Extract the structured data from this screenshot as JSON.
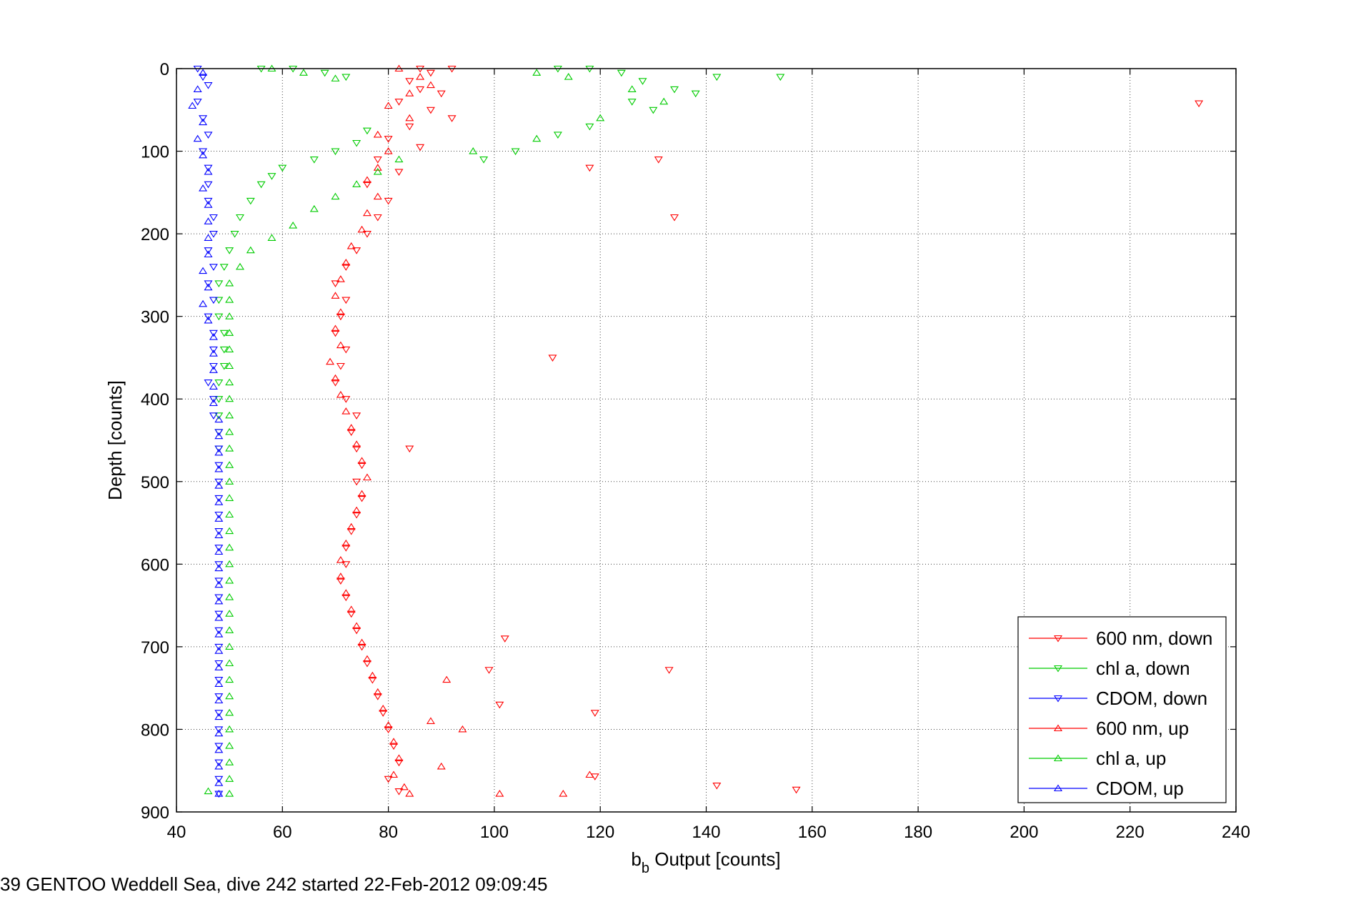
{
  "chart_data": {
    "type": "scatter",
    "xlabel": {
      "base": "b",
      "sub": "b",
      "rest": " Output [counts]"
    },
    "ylabel": "Depth [counts]",
    "xlim": [
      40,
      240
    ],
    "ylim": [
      0,
      900
    ],
    "y_reversed": true,
    "xticks": [
      40,
      60,
      80,
      100,
      120,
      140,
      160,
      180,
      200,
      220,
      240
    ],
    "yticks": [
      0,
      100,
      200,
      300,
      400,
      500,
      600,
      700,
      800,
      900
    ],
    "grid": true,
    "legend_position": "bottom-right",
    "series": [
      {
        "name": "600 nm, down",
        "color": "#ff0000",
        "marker": "triangle-down",
        "points": [
          [
            86,
            0
          ],
          [
            88,
            5
          ],
          [
            92,
            0
          ],
          [
            84,
            15
          ],
          [
            86,
            25
          ],
          [
            90,
            30
          ],
          [
            82,
            40
          ],
          [
            88,
            50
          ],
          [
            92,
            60
          ],
          [
            84,
            70
          ],
          [
            80,
            85
          ],
          [
            86,
            95
          ],
          [
            78,
            110
          ],
          [
            82,
            125
          ],
          [
            76,
            140
          ],
          [
            80,
            160
          ],
          [
            78,
            180
          ],
          [
            76,
            200
          ],
          [
            74,
            220
          ],
          [
            72,
            240
          ],
          [
            70,
            260
          ],
          [
            72,
            280
          ],
          [
            71,
            300
          ],
          [
            70,
            320
          ],
          [
            72,
            340
          ],
          [
            71,
            360
          ],
          [
            70,
            380
          ],
          [
            72,
            400
          ],
          [
            74,
            420
          ],
          [
            73,
            440
          ],
          [
            74,
            460
          ],
          [
            75,
            480
          ],
          [
            74,
            500
          ],
          [
            75,
            520
          ],
          [
            74,
            540
          ],
          [
            73,
            560
          ],
          [
            72,
            580
          ],
          [
            72,
            600
          ],
          [
            71,
            620
          ],
          [
            72,
            640
          ],
          [
            73,
            660
          ],
          [
            74,
            680
          ],
          [
            75,
            700
          ],
          [
            76,
            720
          ],
          [
            77,
            740
          ],
          [
            78,
            760
          ],
          [
            79,
            780
          ],
          [
            80,
            800
          ],
          [
            81,
            820
          ],
          [
            82,
            840
          ],
          [
            80,
            860
          ],
          [
            82,
            875
          ],
          [
            118,
            120
          ],
          [
            131,
            110
          ],
          [
            134,
            180
          ],
          [
            111,
            350
          ],
          [
            84,
            460
          ],
          [
            102,
            690
          ],
          [
            133,
            728
          ],
          [
            99,
            728
          ],
          [
            119,
            780
          ],
          [
            142,
            868
          ],
          [
            157,
            873
          ],
          [
            233,
            42
          ],
          [
            119,
            857
          ],
          [
            101,
            770
          ]
        ]
      },
      {
        "name": "chl a, down",
        "color": "#00cc00",
        "marker": "triangle-down",
        "points": [
          [
            62,
            0
          ],
          [
            68,
            5
          ],
          [
            72,
            10
          ],
          [
            56,
            0
          ],
          [
            112,
            0
          ],
          [
            118,
            0
          ],
          [
            124,
            5
          ],
          [
            128,
            15
          ],
          [
            134,
            25
          ],
          [
            138,
            30
          ],
          [
            142,
            10
          ],
          [
            154,
            10
          ],
          [
            126,
            40
          ],
          [
            130,
            50
          ],
          [
            118,
            70
          ],
          [
            112,
            80
          ],
          [
            104,
            100
          ],
          [
            98,
            110
          ],
          [
            76,
            75
          ],
          [
            74,
            90
          ],
          [
            70,
            100
          ],
          [
            66,
            110
          ],
          [
            60,
            120
          ],
          [
            58,
            130
          ],
          [
            56,
            140
          ],
          [
            54,
            160
          ],
          [
            52,
            180
          ],
          [
            51,
            200
          ],
          [
            50,
            220
          ],
          [
            49,
            240
          ],
          [
            48,
            260
          ],
          [
            48,
            280
          ],
          [
            48,
            300
          ],
          [
            49,
            320
          ],
          [
            49,
            340
          ],
          [
            49,
            360
          ],
          [
            48,
            380
          ],
          [
            48,
            400
          ],
          [
            48,
            420
          ],
          [
            48,
            440
          ],
          [
            48,
            460
          ]
        ]
      },
      {
        "name": "CDOM, down",
        "color": "#0000ff",
        "marker": "triangle-down",
        "points": [
          [
            44,
            0
          ],
          [
            45,
            10
          ],
          [
            46,
            20
          ],
          [
            44,
            40
          ],
          [
            45,
            60
          ],
          [
            46,
            80
          ],
          [
            45,
            100
          ],
          [
            46,
            120
          ],
          [
            46,
            140
          ],
          [
            46,
            160
          ],
          [
            47,
            180
          ],
          [
            47,
            200
          ],
          [
            46,
            220
          ],
          [
            47,
            240
          ],
          [
            46,
            260
          ],
          [
            47,
            280
          ],
          [
            46,
            300
          ],
          [
            47,
            320
          ],
          [
            47,
            340
          ],
          [
            47,
            360
          ],
          [
            46,
            380
          ],
          [
            47,
            400
          ],
          [
            47,
            420
          ],
          [
            48,
            440
          ],
          [
            48,
            460
          ],
          [
            48,
            480
          ],
          [
            48,
            500
          ],
          [
            48,
            520
          ],
          [
            48,
            540
          ],
          [
            48,
            560
          ],
          [
            48,
            580
          ],
          [
            48,
            600
          ],
          [
            48,
            620
          ],
          [
            48,
            640
          ],
          [
            48,
            660
          ],
          [
            48,
            680
          ],
          [
            48,
            700
          ],
          [
            48,
            720
          ],
          [
            48,
            740
          ],
          [
            48,
            760
          ],
          [
            48,
            780
          ],
          [
            48,
            800
          ],
          [
            48,
            820
          ],
          [
            48,
            840
          ],
          [
            48,
            860
          ],
          [
            48,
            878
          ]
        ]
      },
      {
        "name": "600 nm, up",
        "color": "#ff0000",
        "marker": "triangle-up",
        "points": [
          [
            82,
            0
          ],
          [
            86,
            10
          ],
          [
            88,
            20
          ],
          [
            84,
            30
          ],
          [
            80,
            45
          ],
          [
            84,
            60
          ],
          [
            78,
            80
          ],
          [
            80,
            100
          ],
          [
            78,
            120
          ],
          [
            76,
            135
          ],
          [
            78,
            155
          ],
          [
            76,
            175
          ],
          [
            75,
            195
          ],
          [
            73,
            215
          ],
          [
            72,
            235
          ],
          [
            71,
            255
          ],
          [
            70,
            275
          ],
          [
            71,
            295
          ],
          [
            70,
            315
          ],
          [
            71,
            335
          ],
          [
            69,
            355
          ],
          [
            70,
            375
          ],
          [
            71,
            395
          ],
          [
            72,
            415
          ],
          [
            73,
            435
          ],
          [
            74,
            455
          ],
          [
            75,
            475
          ],
          [
            76,
            495
          ],
          [
            75,
            515
          ],
          [
            74,
            535
          ],
          [
            73,
            555
          ],
          [
            72,
            575
          ],
          [
            71,
            595
          ],
          [
            71,
            615
          ],
          [
            72,
            635
          ],
          [
            73,
            655
          ],
          [
            74,
            675
          ],
          [
            75,
            695
          ],
          [
            76,
            715
          ],
          [
            77,
            735
          ],
          [
            78,
            755
          ],
          [
            79,
            775
          ],
          [
            80,
            795
          ],
          [
            81,
            815
          ],
          [
            82,
            835
          ],
          [
            81,
            855
          ],
          [
            83,
            870
          ],
          [
            84,
            878
          ],
          [
            91,
            740
          ],
          [
            94,
            800
          ],
          [
            101,
            878
          ],
          [
            113,
            878
          ],
          [
            118,
            855
          ],
          [
            88,
            790
          ],
          [
            90,
            845
          ]
        ]
      },
      {
        "name": "chl a, up",
        "color": "#00cc00",
        "marker": "triangle-up",
        "points": [
          [
            58,
            0
          ],
          [
            64,
            5
          ],
          [
            70,
            12
          ],
          [
            108,
            5
          ],
          [
            114,
            10
          ],
          [
            126,
            25
          ],
          [
            132,
            40
          ],
          [
            120,
            60
          ],
          [
            108,
            85
          ],
          [
            96,
            100
          ],
          [
            82,
            110
          ],
          [
            78,
            125
          ],
          [
            74,
            140
          ],
          [
            70,
            155
          ],
          [
            66,
            170
          ],
          [
            62,
            190
          ],
          [
            58,
            205
          ],
          [
            54,
            220
          ],
          [
            52,
            240
          ],
          [
            50,
            260
          ],
          [
            50,
            280
          ],
          [
            50,
            300
          ],
          [
            50,
            320
          ],
          [
            50,
            340
          ],
          [
            50,
            360
          ],
          [
            50,
            380
          ],
          [
            50,
            400
          ],
          [
            50,
            420
          ],
          [
            50,
            440
          ],
          [
            50,
            460
          ],
          [
            50,
            480
          ],
          [
            50,
            500
          ],
          [
            50,
            520
          ],
          [
            50,
            540
          ],
          [
            50,
            560
          ],
          [
            50,
            580
          ],
          [
            50,
            600
          ],
          [
            50,
            620
          ],
          [
            50,
            640
          ],
          [
            50,
            660
          ],
          [
            50,
            680
          ],
          [
            50,
            700
          ],
          [
            50,
            720
          ],
          [
            50,
            740
          ],
          [
            50,
            760
          ],
          [
            50,
            780
          ],
          [
            50,
            800
          ],
          [
            50,
            820
          ],
          [
            50,
            840
          ],
          [
            50,
            860
          ],
          [
            50,
            878
          ],
          [
            46,
            875
          ]
        ]
      },
      {
        "name": "CDOM, up",
        "color": "#0000ff",
        "marker": "triangle-up",
        "points": [
          [
            45,
            5
          ],
          [
            44,
            25
          ],
          [
            43,
            45
          ],
          [
            45,
            65
          ],
          [
            44,
            85
          ],
          [
            45,
            105
          ],
          [
            46,
            125
          ],
          [
            45,
            145
          ],
          [
            46,
            165
          ],
          [
            46,
            185
          ],
          [
            46,
            205
          ],
          [
            46,
            225
          ],
          [
            45,
            245
          ],
          [
            46,
            265
          ],
          [
            45,
            285
          ],
          [
            46,
            305
          ],
          [
            47,
            325
          ],
          [
            47,
            345
          ],
          [
            47,
            365
          ],
          [
            47,
            385
          ],
          [
            47,
            405
          ],
          [
            48,
            425
          ],
          [
            48,
            445
          ],
          [
            48,
            465
          ],
          [
            48,
            485
          ],
          [
            48,
            505
          ],
          [
            48,
            525
          ],
          [
            48,
            545
          ],
          [
            48,
            565
          ],
          [
            48,
            585
          ],
          [
            48,
            605
          ],
          [
            48,
            625
          ],
          [
            48,
            645
          ],
          [
            48,
            665
          ],
          [
            48,
            685
          ],
          [
            48,
            705
          ],
          [
            48,
            725
          ],
          [
            48,
            745
          ],
          [
            48,
            765
          ],
          [
            48,
            785
          ],
          [
            48,
            805
          ],
          [
            48,
            825
          ],
          [
            48,
            845
          ],
          [
            48,
            865
          ],
          [
            48,
            878
          ]
        ]
      }
    ]
  },
  "footer": {
    "caption": "39 GENTOO Weddell Sea, dive 242 started 22-Feb-2012 09:09:45"
  }
}
